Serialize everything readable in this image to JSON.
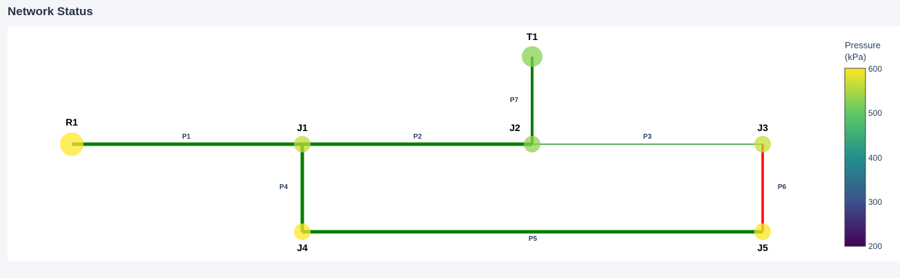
{
  "header": {
    "title": "Network Status"
  },
  "colors": {
    "pipe_ok": "#008000",
    "pipe_alert": "#ff0000",
    "colorscale": [
      "#440154",
      "#3b528b",
      "#21918c",
      "#5ec962",
      "#fde725"
    ]
  },
  "colorbar": {
    "title_line1": "Pressure",
    "title_line2": "(kPa)",
    "min": 200,
    "max": 600,
    "ticks": [
      "600",
      "500",
      "400",
      "300",
      "200"
    ]
  },
  "nodes": [
    {
      "id": "R1",
      "pressure": 600,
      "kind": "reservoir"
    },
    {
      "id": "J1",
      "pressure": 560,
      "kind": "junction"
    },
    {
      "id": "J2",
      "pressure": 530,
      "kind": "junction"
    },
    {
      "id": "T1",
      "pressure": 525,
      "kind": "tank"
    },
    {
      "id": "J3",
      "pressure": 565,
      "kind": "junction"
    },
    {
      "id": "J4",
      "pressure": 600,
      "kind": "junction"
    },
    {
      "id": "J5",
      "pressure": 598,
      "kind": "junction"
    }
  ],
  "pipes": [
    {
      "id": "P1",
      "from": "R1",
      "to": "J1",
      "status": "ok"
    },
    {
      "id": "P2",
      "from": "J1",
      "to": "J2",
      "status": "ok"
    },
    {
      "id": "P3",
      "from": "J2",
      "to": "J3",
      "status": "ok"
    },
    {
      "id": "P4",
      "from": "J1",
      "to": "J4",
      "status": "ok"
    },
    {
      "id": "P5",
      "from": "J4",
      "to": "J5",
      "status": "ok"
    },
    {
      "id": "P6",
      "from": "J3",
      "to": "J5",
      "status": "alert"
    },
    {
      "id": "P7",
      "from": "J2",
      "to": "T1",
      "status": "ok"
    }
  ]
}
